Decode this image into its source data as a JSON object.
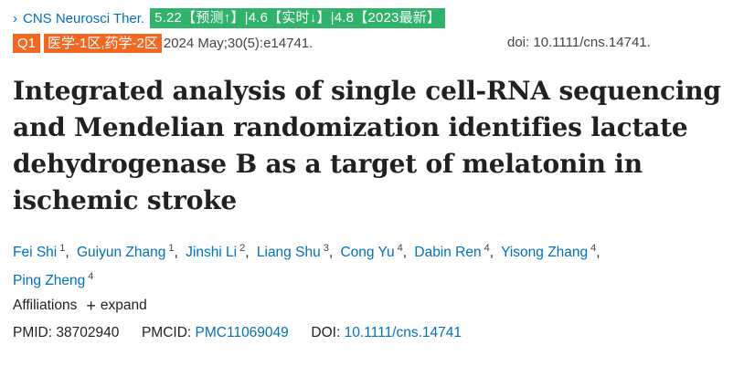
{
  "journal": {
    "name": "CNS Neurosci Ther.",
    "metrics_badge": "5.22【预测↑】|4.6【实时↓】|4.8【2023最新】",
    "quartile_badge": "Q1",
    "category_badge": "医学-1区,药学-2区",
    "citation": "2024 May;30(5):e14741.",
    "doi_text": "doi: 10.1111/cns.14741."
  },
  "article": {
    "title": "Integrated analysis of single cell-RNA sequencing and Mendelian randomization identifies lactate dehydrogenase B as a target of melatonin in ischemic stroke"
  },
  "authors": [
    {
      "name": "Fei Shi",
      "aff": "1"
    },
    {
      "name": "Guiyun Zhang",
      "aff": "1"
    },
    {
      "name": "Jinshi Li",
      "aff": "2"
    },
    {
      "name": "Liang Shu",
      "aff": "3"
    },
    {
      "name": "Cong Yu",
      "aff": "4"
    },
    {
      "name": "Dabin Ren",
      "aff": "4"
    },
    {
      "name": "Yisong Zhang",
      "aff": "4"
    },
    {
      "name": "Ping Zheng",
      "aff": "4"
    }
  ],
  "affiliations": {
    "label": "Affiliations",
    "expand_label": "expand",
    "icon": "plus-icon"
  },
  "identifiers": {
    "pmid_label": "PMID:",
    "pmid": "38702940",
    "pmcid_label": "PMCID:",
    "pmcid": "PMC11069049",
    "doi_label": "DOI:",
    "doi": "10.1111/cns.14741"
  },
  "colors": {
    "link": "#0071bc",
    "metrics_badge_bg": "#2fb36b",
    "quartile_badge_bg": "#f26722"
  }
}
